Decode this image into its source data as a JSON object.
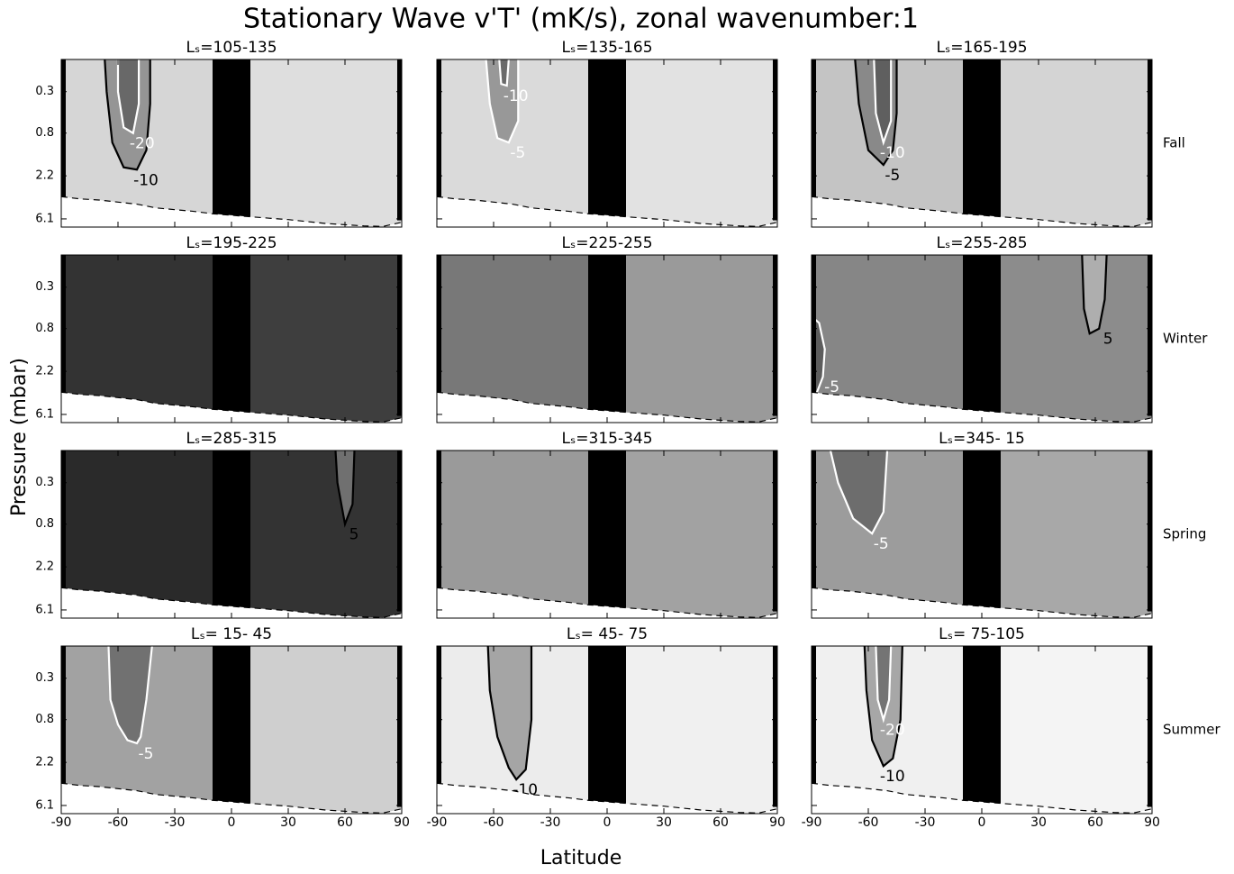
{
  "chart_data": {
    "type": "contour-grid",
    "title": "Stationary Wave v'T' (mK/s), zonal wavenumber:1",
    "xlabel": "Latitude",
    "ylabel": "Pressure (mbar)",
    "xlim": [
      -90,
      90
    ],
    "xticks": [
      -90,
      -60,
      -30,
      0,
      30,
      60,
      90
    ],
    "ylim": [
      7.4,
      0.14
    ],
    "yticks": [
      0.3,
      0.8,
      2.2,
      6.1
    ],
    "ylog": true,
    "mask": [
      -10,
      10
    ],
    "surface": {
      "x": [
        -90,
        -80,
        -70,
        -60,
        -50,
        -40,
        -30,
        -20,
        -10,
        0,
        10,
        20,
        30,
        40,
        50,
        60,
        70,
        80,
        90
      ],
      "y": [
        3.6,
        3.8,
        3.9,
        4.1,
        4.3,
        4.7,
        4.9,
        5.1,
        5.4,
        5.6,
        5.8,
        6.0,
        6.2,
        6.5,
        6.8,
        7.0,
        7.2,
        7.3,
        6.6
      ]
    },
    "rows": [
      "Fall",
      "Winter",
      "Spring",
      "Summer"
    ],
    "panels": [
      {
        "title": "Lₛ=105-135",
        "color": "#d6d6d6",
        "color2": "#dedede",
        "contours": [
          {
            "level": -10,
            "color": "#000000",
            "x": [
              -67,
              -66,
              -63,
              -57,
              -50,
              -45,
              -43,
              -43
            ],
            "y": [
              0.14,
              0.3,
              1.0,
              1.8,
              1.9,
              1.2,
              0.4,
              0.14
            ]
          },
          {
            "level": -20,
            "color": "#ffffff",
            "x": [
              -60,
              -60,
              -57,
              -52,
              -49,
              -49
            ],
            "y": [
              0.14,
              0.3,
              0.7,
              0.8,
              0.4,
              0.14
            ]
          }
        ]
      },
      {
        "title": "Lₛ=135-165",
        "color": "#dadada",
        "color2": "#e2e2e2",
        "contours": [
          {
            "level": -5,
            "color": "#ffffff",
            "x": [
              -64,
              -62,
              -58,
              -52,
              -47,
              -47
            ],
            "y": [
              0.14,
              0.4,
              0.9,
              1.0,
              0.6,
              0.14
            ]
          },
          {
            "level": -10,
            "color": "#ffffff",
            "x": [
              -57,
              -56,
              -53,
              -52
            ],
            "y": [
              0.14,
              0.25,
              0.26,
              0.14
            ]
          }
        ]
      },
      {
        "title": "Lₛ=165-195",
        "color": "#c4c4c4",
        "color2": "#d4d4d4",
        "contours": [
          {
            "level": -5,
            "color": "#000000",
            "x": [
              -67,
              -65,
              -60,
              -52,
              -47,
              -45,
              -45
            ],
            "y": [
              0.14,
              0.4,
              1.2,
              1.7,
              1.2,
              0.5,
              0.14
            ]
          },
          {
            "level": -10,
            "color": "#ffffff",
            "x": [
              -57,
              -56,
              -52,
              -48,
              -48
            ],
            "y": [
              0.14,
              0.5,
              1.0,
              0.6,
              0.14
            ]
          }
        ]
      },
      {
        "title": "Lₛ=195-225",
        "color": "#333333",
        "color2": "#3e3e3e",
        "contours": []
      },
      {
        "title": "Lₛ=225-255",
        "color": "#787878",
        "color2": "#9a9a9a",
        "contours": []
      },
      {
        "title": "Lₛ=255-285",
        "color": "#868686",
        "color2": "#8c8c8c",
        "contours": [
          {
            "level": 5,
            "color": "#000000",
            "x": [
              53,
              54,
              57,
              62,
              65,
              66
            ],
            "y": [
              0.14,
              0.5,
              0.9,
              0.8,
              0.4,
              0.14
            ]
          },
          {
            "level": -5,
            "color": "#ffffff",
            "x": [
              -90,
              -86,
              -83,
              -84,
              -88,
              -90
            ],
            "y": [
              0.6,
              0.7,
              1.3,
              2.5,
              4.0,
              4.2
            ]
          }
        ]
      },
      {
        "title": "Lₛ=285-315",
        "color": "#2a2a2a",
        "color2": "#333333",
        "contours": [
          {
            "level": 5,
            "color": "#000000",
            "x": [
              55,
              56,
              60,
              64,
              65
            ],
            "y": [
              0.14,
              0.3,
              0.8,
              0.5,
              0.14
            ]
          }
        ]
      },
      {
        "title": "Lₛ=315-345",
        "color": "#9a9a9a",
        "color2": "#a2a2a2",
        "contours": []
      },
      {
        "title": "Lₛ=345- 15",
        "color": "#9c9c9c",
        "color2": "#a8a8a8",
        "contours": [
          {
            "level": -5,
            "color": "#ffffff",
            "x": [
              -80,
              -76,
              -68,
              -58,
              -52,
              -50
            ],
            "y": [
              0.14,
              0.3,
              0.7,
              1.0,
              0.6,
              0.14
            ]
          }
        ]
      },
      {
        "title": "Lₛ= 15- 45",
        "color": "#a2a2a2",
        "color2": "#cfcfcf",
        "contours": [
          {
            "level": -5,
            "color": "#ffffff",
            "x": [
              -65,
              -64,
              -60,
              -55,
              -50,
              -48,
              -45,
              -42
            ],
            "y": [
              0.14,
              0.5,
              0.9,
              1.3,
              1.4,
              1.2,
              0.5,
              0.14
            ]
          }
        ]
      },
      {
        "title": "Lₛ= 45- 75",
        "color": "#ececec",
        "color2": "#f0f0f0",
        "contours": [
          {
            "level": -10,
            "color": "#000000",
            "x": [
              -63,
              -62,
              -58,
              -52,
              -48,
              -43,
              -40,
              -40
            ],
            "y": [
              0.14,
              0.4,
              1.2,
              2.5,
              3.3,
              2.6,
              0.8,
              0.14
            ]
          }
        ]
      },
      {
        "title": "Lₛ= 75-105",
        "color": "#f0f0f0",
        "color2": "#f4f4f4",
        "contours": [
          {
            "level": -10,
            "color": "#000000",
            "x": [
              -62,
              -61,
              -58,
              -52,
              -47,
              -43,
              -42
            ],
            "y": [
              0.14,
              0.4,
              1.3,
              2.4,
              2.0,
              0.8,
              0.14
            ]
          },
          {
            "level": -20,
            "color": "#ffffff",
            "x": [
              -56,
              -55,
              -52,
              -49,
              -48
            ],
            "y": [
              0.14,
              0.5,
              0.8,
              0.5,
              0.14
            ]
          }
        ]
      }
    ]
  }
}
